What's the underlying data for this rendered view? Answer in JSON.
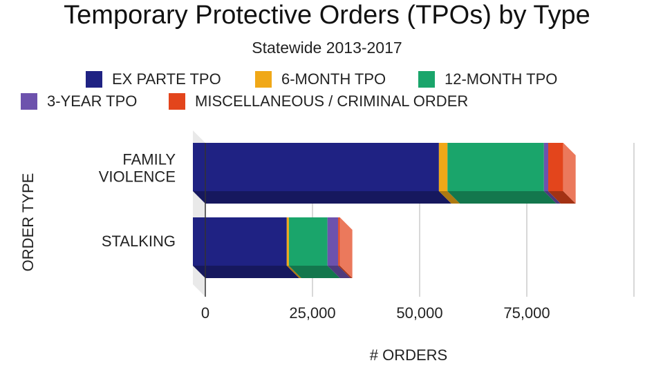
{
  "chart_data": {
    "type": "bar",
    "orientation": "horizontal",
    "stacked": true,
    "three_d": true,
    "title": "Temporary Protective Orders (TPOs) by Type",
    "subtitle": "Statewide 2013-2017",
    "xlabel": "# ORDERS",
    "ylabel": "ORDER TYPE",
    "xlim": [
      0,
      100000
    ],
    "x_ticks": [
      0,
      25000,
      50000,
      75000
    ],
    "x_tick_labels": [
      "0",
      "25,000",
      "50,000",
      "75,000"
    ],
    "grid": true,
    "legend_position": "top",
    "categories": [
      "FAMILY VIOLENCE",
      "STALKING"
    ],
    "category_lines": [
      [
        "FAMILY",
        "VIOLENCE"
      ],
      [
        "STALKING"
      ]
    ],
    "series": [
      {
        "name": "EX PARTE TPO",
        "color": "#1f2283",
        "values": [
          57400,
          21900
        ]
      },
      {
        "name": "6-MONTH TPO",
        "color": "#f0a818",
        "values": [
          2000,
          500
        ]
      },
      {
        "name": "12-MONTH TPO",
        "color": "#1aa56b",
        "values": [
          22500,
          9000
        ]
      },
      {
        "name": "3-YEAR TPO",
        "color": "#6d52ad",
        "values": [
          1000,
          2500
        ]
      },
      {
        "name": "MISCELLANEOUS / CRIMINAL ORDER",
        "color": "#e3451c",
        "values": [
          3500,
          400
        ]
      }
    ]
  }
}
